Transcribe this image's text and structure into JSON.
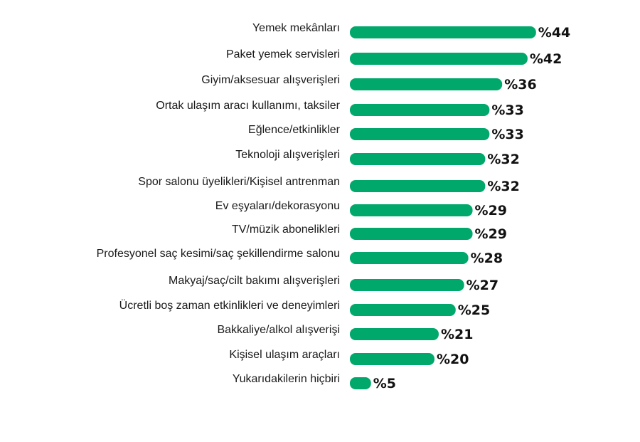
{
  "chart_data": {
    "type": "bar",
    "orientation": "horizontal",
    "categories": [
      "Yemek mekânları",
      "Paket yemek servisleri",
      "Giyim/aksesuar alışverişleri",
      "Ortak ulaşım aracı kullanımı, taksiler",
      "Eğlence/etkinlikler",
      "Teknoloji alışverişleri",
      "Spor salonu üyelikleri/Kişisel antrenman",
      "Ev eşyaları/dekorasyonu",
      "TV/müzik abonelikleri",
      "Profesyonel saç kesimi/saç şekillendirme salonu",
      "Makyaj/saç/cilt bakımı alışverişleri",
      "Ücretli boş zaman etkinlikleri ve deneyimleri",
      "Bakkaliye/alkol alışverişi",
      "Kişisel ulaşım araçları",
      "Yukarıdakilerin hiçbiri"
    ],
    "values": [
      44,
      42,
      36,
      33,
      33,
      32,
      32,
      29,
      29,
      28,
      27,
      25,
      21,
      20,
      5
    ],
    "value_labels": [
      "%44",
      "%42",
      "%36",
      "%33",
      "%33",
      "%32",
      "%32",
      "%29",
      "%29",
      "%28",
      "%27",
      "%25",
      "%21",
      "%20",
      "%5"
    ],
    "bar_color": "#00a86b",
    "grid": false,
    "legend": "none"
  }
}
